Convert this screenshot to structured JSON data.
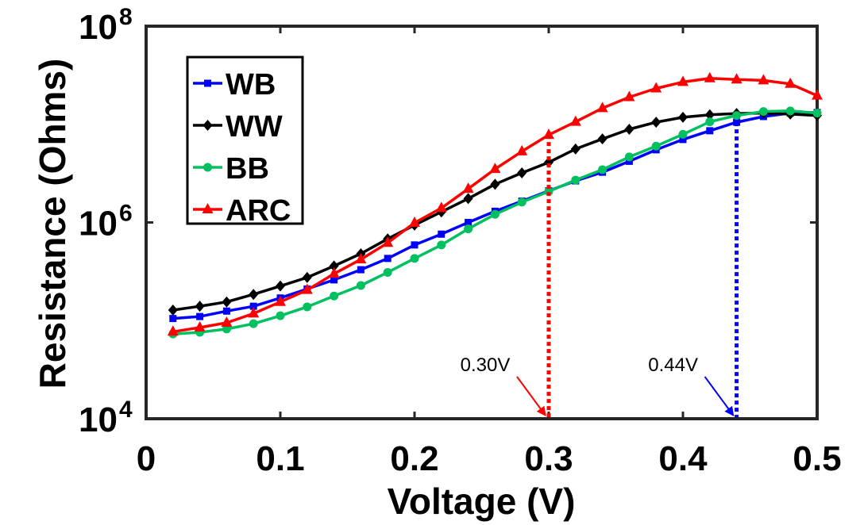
{
  "chart_data": {
    "type": "line",
    "xlabel": "Voltage (V)",
    "ylabel": "Resistance (Ohms)",
    "xlim": [
      0,
      0.5
    ],
    "ylim": [
      10000,
      100000000
    ],
    "yscale": "log",
    "x_ticks": [
      {
        "value": 0,
        "label": "0"
      },
      {
        "value": 0.1,
        "label": "0.1"
      },
      {
        "value": 0.2,
        "label": "0.2"
      },
      {
        "value": 0.3,
        "label": "0.3"
      },
      {
        "value": 0.4,
        "label": "0.4"
      },
      {
        "value": 0.5,
        "label": "0.5"
      }
    ],
    "y_ticks": [
      {
        "value": 10000,
        "base": "10",
        "exp": "4"
      },
      {
        "value": 1000000,
        "base": "10",
        "exp": "6"
      },
      {
        "value": 100000000,
        "base": "10",
        "exp": "8"
      }
    ],
    "legend_position": "top-left",
    "x": [
      0.02,
      0.04,
      0.06,
      0.08,
      0.1,
      0.12,
      0.14,
      0.16,
      0.18,
      0.2,
      0.22,
      0.24,
      0.26,
      0.28,
      0.3,
      0.32,
      0.34,
      0.36,
      0.38,
      0.4,
      0.42,
      0.44,
      0.46,
      0.48,
      0.5
    ],
    "series": [
      {
        "name": "WB",
        "color": "#0000ff",
        "marker": "square",
        "values": [
          105000,
          110000,
          125000,
          140000,
          170000,
          210000,
          260000,
          330000,
          430000,
          590000,
          760000,
          1000000,
          1300000,
          1650000,
          2100000,
          2650000,
          3250000,
          4200000,
          5500000,
          7000000,
          8600000,
          10500000,
          12000000,
          13000000,
          13200000
        ]
      },
      {
        "name": "WW",
        "color": "#000000",
        "marker": "diamond",
        "values": [
          128000,
          140000,
          155000,
          185000,
          225000,
          275000,
          360000,
          480000,
          680000,
          940000,
          1280000,
          1750000,
          2450000,
          3200000,
          4100000,
          5600000,
          7100000,
          8900000,
          10500000,
          11800000,
          12500000,
          12900000,
          13000000,
          12700000,
          12300000
        ]
      },
      {
        "name": "BB",
        "color": "#00c060",
        "marker": "circle",
        "values": [
          73000,
          76000,
          82000,
          93000,
          112000,
          138000,
          178000,
          228000,
          310000,
          430000,
          590000,
          860000,
          1210000,
          1610000,
          2070000,
          2700000,
          3450000,
          4650000,
          6000000,
          7900000,
          10600000,
          12300000,
          13500000,
          13700000,
          13000000
        ]
      },
      {
        "name": "ARC",
        "color": "#ff0000",
        "marker": "triangle",
        "values": [
          77000,
          85000,
          95000,
          118000,
          155000,
          205000,
          300000,
          420000,
          620000,
          990000,
          1400000,
          2200000,
          3500000,
          5300000,
          7800000,
          10600000,
          14600000,
          18900000,
          23200000,
          27000000,
          29400000,
          28600000,
          28000000,
          25800000,
          19600000
        ]
      }
    ],
    "annotations": [
      {
        "label": "0.30V",
        "x": 0.3,
        "color": "#ff0000"
      },
      {
        "label": "0.44V",
        "x": 0.44,
        "color": "#0000ff"
      }
    ]
  }
}
